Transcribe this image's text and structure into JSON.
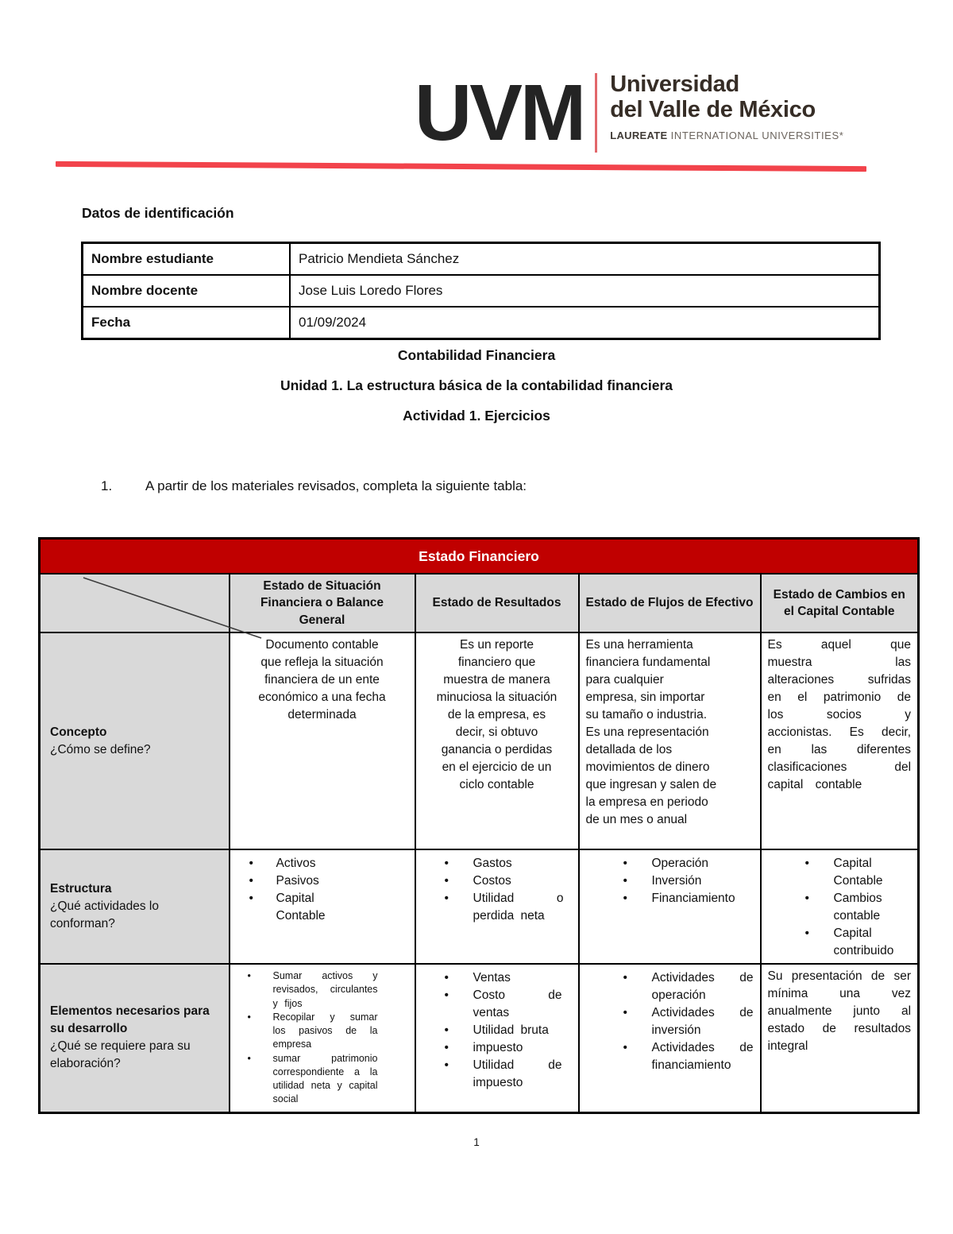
{
  "logo": {
    "mark": "UVM",
    "name_line1": "Universidad",
    "name_line2": "del Valle de México",
    "laureate_bold": "LAUREATE",
    "laureate_rest": " INTERNATIONAL UNIVERSITIES*"
  },
  "section_title": "Datos de identificación",
  "id_table": {
    "rows": [
      {
        "label": "Nombre estudiante",
        "value": "Patricio Mendieta Sánchez"
      },
      {
        "label": "Nombre docente",
        "value": "Jose Luis Loredo Flores"
      },
      {
        "label": "Fecha",
        "value": "01/09/2024"
      }
    ]
  },
  "headings": {
    "course": "Contabilidad Financiera",
    "unit": "Unidad 1. La estructura básica de la contabilidad financiera",
    "activity": "Actividad 1. Ejercicios"
  },
  "instruction": {
    "number": "1.",
    "text": "A partir de los materiales revisados, completa la siguiente tabla:"
  },
  "main_table": {
    "title": "Estado Financiero",
    "columns": [
      "Estado de Situación Financiera o Balance General",
      "Estado de Resultados",
      "Estado de Flujos de Efectivo",
      "Estado de Cambios en el Capital Contable"
    ],
    "rows": [
      {
        "label": "Concepto",
        "question": "¿Cómo se define?",
        "cells": [
          "Documento contable que refleja la situación financiera de un ente económico a una fecha determinada",
          "Es un reporte financiero que muestra de manera minuciosa la situación de la empresa, es decir, si obtuvo ganancia o perdidas en el ejercicio de un ciclo contable",
          "Es una herramienta financiera fundamental para cualquier empresa, sin importar su tamaño o industria. Es una representación detallada de los movimientos de dinero que ingresan y salen de la empresa en periodo de un mes o anual",
          "Es aquel que muestra las alteraciones sufridas en el patrimonio de los socios y accionistas. Es decir, en las diferentes clasificaciones del capital contable"
        ]
      },
      {
        "label": "Estructura",
        "question": "¿Qué actividades lo conforman?",
        "cells": [
          [
            "Activos",
            "Pasivos",
            "Capital Contable"
          ],
          [
            "Gastos",
            "Costos",
            "Utilidad o perdida neta"
          ],
          [
            "Operación",
            "Inversión",
            "Financiamiento"
          ],
          [
            "Capital Contable",
            "Cambios contable",
            "Capital contribuido"
          ]
        ]
      },
      {
        "label": "Elementos necesarios para su desarrollo",
        "question": "¿Qué se requiere para su elaboración?",
        "cells": [
          [
            "Sumar activos y revisados, circulantes y fijos",
            "Recopilar y sumar los pasivos de la empresa",
            "sumar patrimonio correspondiente a la utilidad neta y capital social"
          ],
          [
            "Ventas",
            "Costo de ventas",
            "Utilidad bruta",
            "impuesto",
            "Utilidad de impuesto"
          ],
          [
            "Actividades de operación",
            "Actividades de inversión",
            "Actividades de financiamiento"
          ],
          "Su presentación de ser mínima una vez anualmente junto al estado de resultados integral"
        ]
      }
    ]
  },
  "page_number": "1",
  "colors": {
    "header_red": "#C00000",
    "accent_line": "#F2434B",
    "cell_gray": "#D9D9D9"
  }
}
